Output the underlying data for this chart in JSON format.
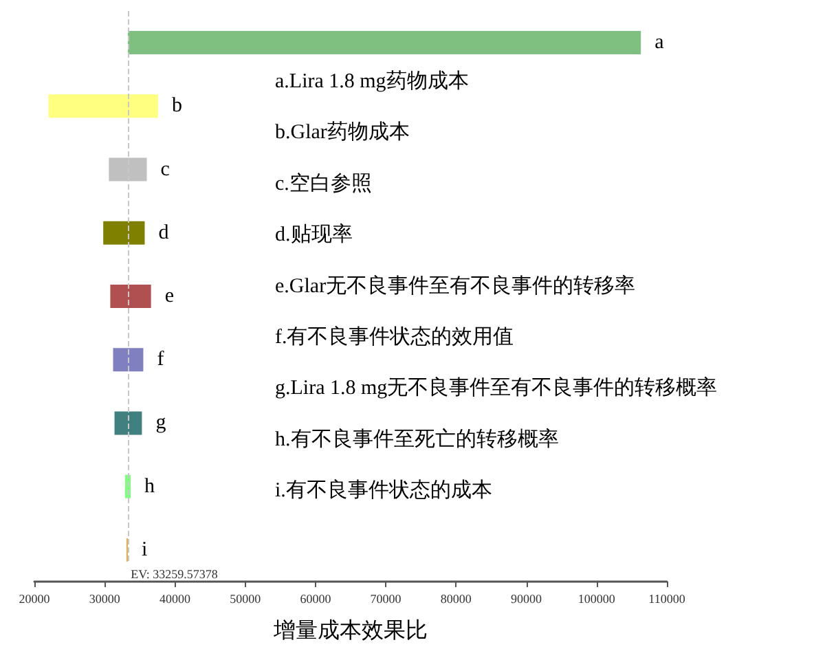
{
  "chart_data": {
    "type": "bar",
    "orientation": "horizontal",
    "xlabel": "增量成本效果比",
    "categories": [
      "a",
      "b",
      "c",
      "d",
      "e",
      "f",
      "g",
      "h",
      "i"
    ],
    "base": [
      33300,
      22000,
      30600,
      29800,
      30800,
      31200,
      31400,
      32900,
      33100
    ],
    "values": [
      73000,
      15600,
      5400,
      5900,
      5800,
      4300,
      3900,
      800,
      200
    ],
    "colors": [
      "#7fbf7f",
      "#ffff80",
      "#c0c0c0",
      "#808000",
      "#b05050",
      "#8080c0",
      "#408080",
      "#80ff80",
      "#e0b040"
    ],
    "xlim": [
      20000,
      110000
    ],
    "xticks": [
      20000,
      30000,
      40000,
      50000,
      60000,
      70000,
      80000,
      90000,
      100000,
      110000
    ],
    "grid": false,
    "ref_lines": [
      {
        "axis": "x",
        "value": 33259.57378,
        "label": "EV: 33259.57378",
        "color": "#c8c8c8",
        "line_style": "dashed"
      }
    ],
    "annotations": [
      "a.Lira 1.8 mg药物成本",
      "b.Glar药物成本",
      "c.空白参照",
      "d.贴现率",
      "e.Glar无不良事件至有不良事件的转移率",
      "f.有不良事件状态的效用值",
      "g.Lira 1.8 mg无不良事件至有不良事件的转移概率",
      "h.有不良事件至死亡的转移概率",
      "i.有不良事件状态的成本"
    ]
  }
}
